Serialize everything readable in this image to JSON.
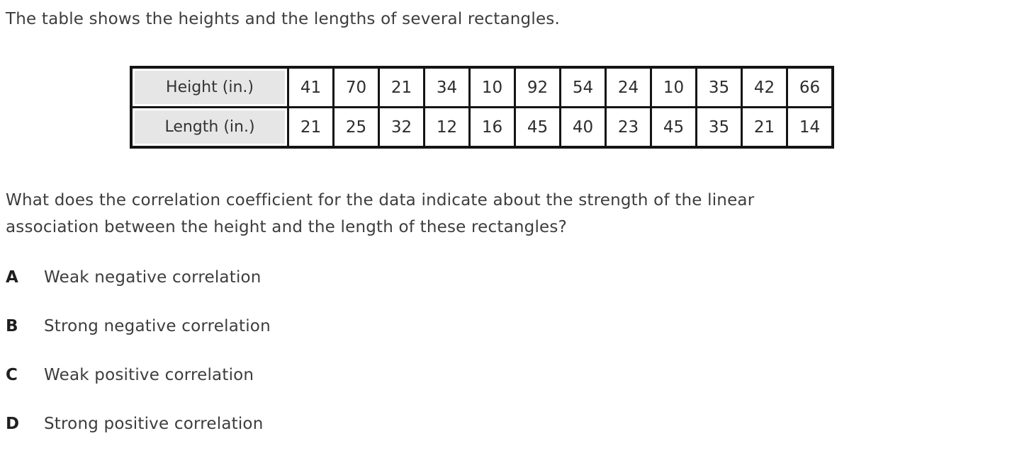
{
  "intro": "The table shows the heights and the lengths of several rectangles.",
  "table": {
    "rows": [
      {
        "header": "Height (in.)",
        "values": [
          "41",
          "70",
          "21",
          "34",
          "10",
          "92",
          "54",
          "24",
          "10",
          "35",
          "42",
          "66"
        ]
      },
      {
        "header": "Length (in.)",
        "values": [
          "21",
          "25",
          "32",
          "12",
          "16",
          "45",
          "40",
          "23",
          "45",
          "35",
          "21",
          "14"
        ]
      }
    ]
  },
  "question": {
    "lines": [
      "What does the correlation coefficient for the data indicate about the strength of the linear",
      "association between the height and the length of these rectangles?"
    ]
  },
  "options": [
    {
      "letter": "A",
      "label": "Weak negative correlation"
    },
    {
      "letter": "B",
      "label": "Strong negative correlation"
    },
    {
      "letter": "C",
      "label": "Weak positive correlation"
    },
    {
      "letter": "D",
      "label": "Strong positive correlation"
    }
  ],
  "colors": {
    "text": "#3d3d3d",
    "table_text": "#2d2d2d",
    "table_border": "#141414",
    "header_cell_bg": "#e6e6e6",
    "page_bg": "#ffffff"
  }
}
